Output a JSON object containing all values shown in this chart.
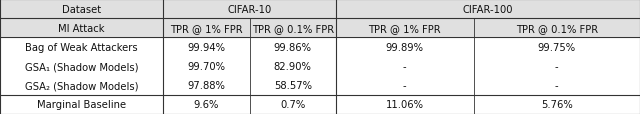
{
  "figsize": [
    6.4,
    1.15
  ],
  "dpi": 100,
  "col_headers_row1": [
    "Dataset",
    "CIFAR-10",
    "",
    "CIFAR-100",
    ""
  ],
  "col_headers_row2": [
    "MI Attack",
    "TPR @ 1% FPR",
    "TPR @ 0.1% FPR",
    "TPR @ 1% FPR",
    "TPR @ 0.1% FPR"
  ],
  "rows": [
    [
      "Bag of Weak Attackers",
      "99.94%",
      "99.86%",
      "99.89%",
      "99.75%"
    ],
    [
      "GSA₁ (Shadow Models)",
      "99.70%",
      "82.90%",
      "-",
      "-"
    ],
    [
      "GSA₂ (Shadow Models)",
      "97.88%",
      "58.57%",
      "-",
      "-"
    ],
    [
      "Marginal Baseline",
      "9.6%",
      "0.7%",
      "11.06%",
      "5.76%"
    ]
  ],
  "line_color": "#333333",
  "text_color": "#111111",
  "font_size": 7.2,
  "bounds": [
    0.0,
    0.255,
    0.39,
    0.525,
    0.74,
    1.0
  ],
  "total_rows": 6,
  "header_bg": "#e0e0e0",
  "white_bg": "#ffffff"
}
